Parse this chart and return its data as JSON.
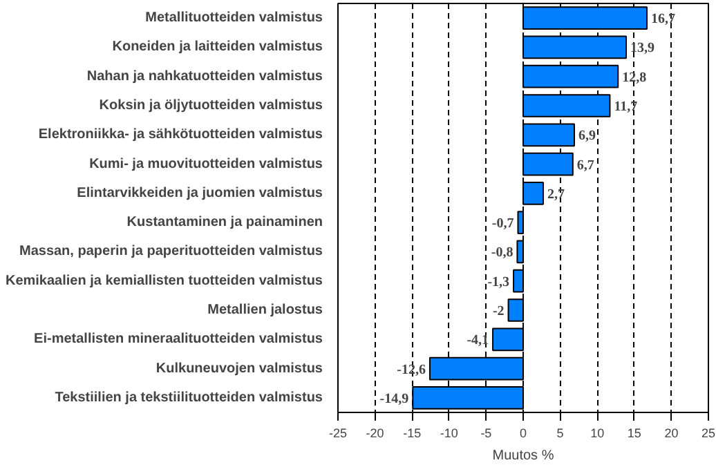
{
  "chart_data": {
    "type": "bar",
    "orientation": "horizontal",
    "xlabel": "Muutos %",
    "categories": [
      "Metallituotteiden valmistus",
      "Koneiden ja laitteiden valmistus",
      "Nahan ja nahkatuotteiden valmistus",
      "Koksin ja öljytuotteiden valmistus",
      "Elektroniikka- ja sähkötuotteiden valmistus",
      "Kumi- ja muovituotteiden valmistus",
      "Elintarvikkeiden ja juomien valmistus",
      "Kustantaminen ja painaminen",
      "Massan, paperin ja paperituotteiden valmistus",
      "Kemikaalien ja kemiallisten tuotteiden valmistus",
      "Metallien jalostus",
      "Ei-metallisten mineraalituotteiden valmistus",
      "Kulkuneuvojen valmistus",
      "Tekstiilien ja tekstiilituotteiden valmistus"
    ],
    "values": [
      16.7,
      13.9,
      12.8,
      11.7,
      6.9,
      6.7,
      2.7,
      -0.7,
      -0.8,
      -1.3,
      -2,
      -4.1,
      -12.6,
      -14.9
    ],
    "value_labels": [
      "16,7",
      "13,9",
      "12,8",
      "11,7",
      "6,9",
      "6,7",
      "2,7",
      "-0,7",
      "-0,8",
      "-1,3",
      "-2",
      "-4,1",
      "-12,6",
      "-14,9"
    ],
    "color": "#0080ff",
    "xlim": [
      -25,
      25
    ],
    "xticks": [
      -25,
      -20,
      -15,
      -10,
      -5,
      0,
      5,
      10,
      15,
      20,
      25
    ],
    "grid": "x"
  }
}
